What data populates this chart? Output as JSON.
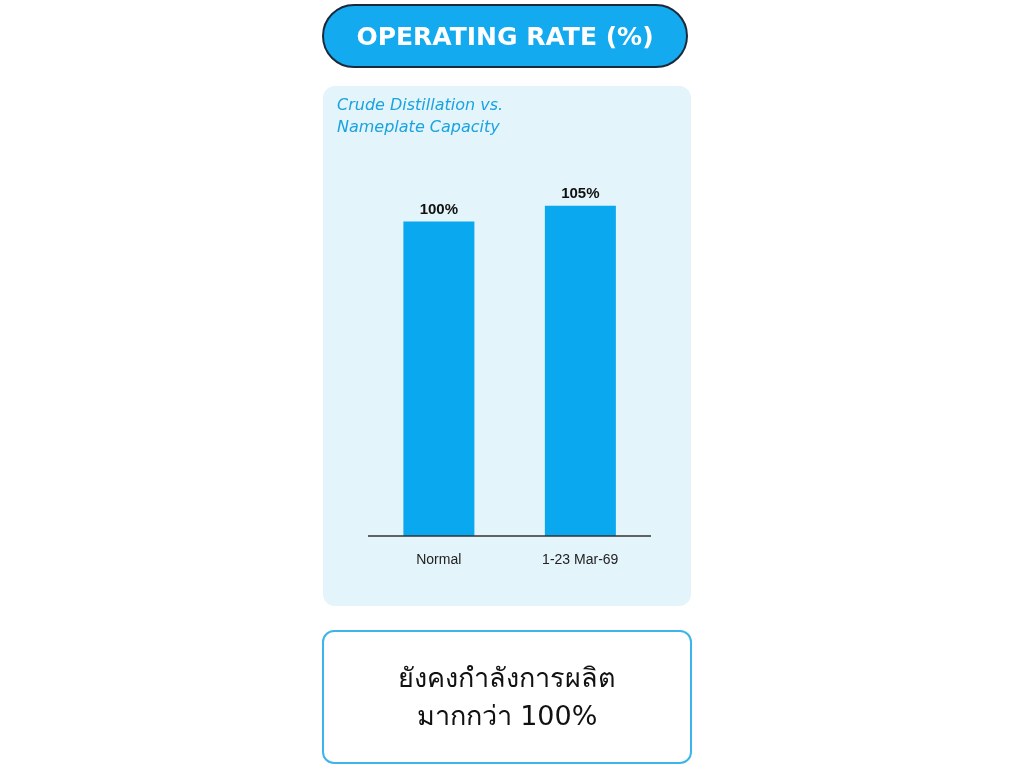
{
  "chart_data": {
    "type": "bar",
    "title": "OPERATING RATE (%)",
    "subtitle": "Crude Distillation vs. Nameplate Capacity",
    "categories": [
      "Normal",
      "1-23 Mar-69"
    ],
    "values": [
      100,
      105
    ],
    "color": "#0aa8ee",
    "value_labels": [
      "100%",
      "105%"
    ],
    "annotations": [
      "ยังคงกำลังการผลิต มากกว่า 100%"
    ]
  }
}
